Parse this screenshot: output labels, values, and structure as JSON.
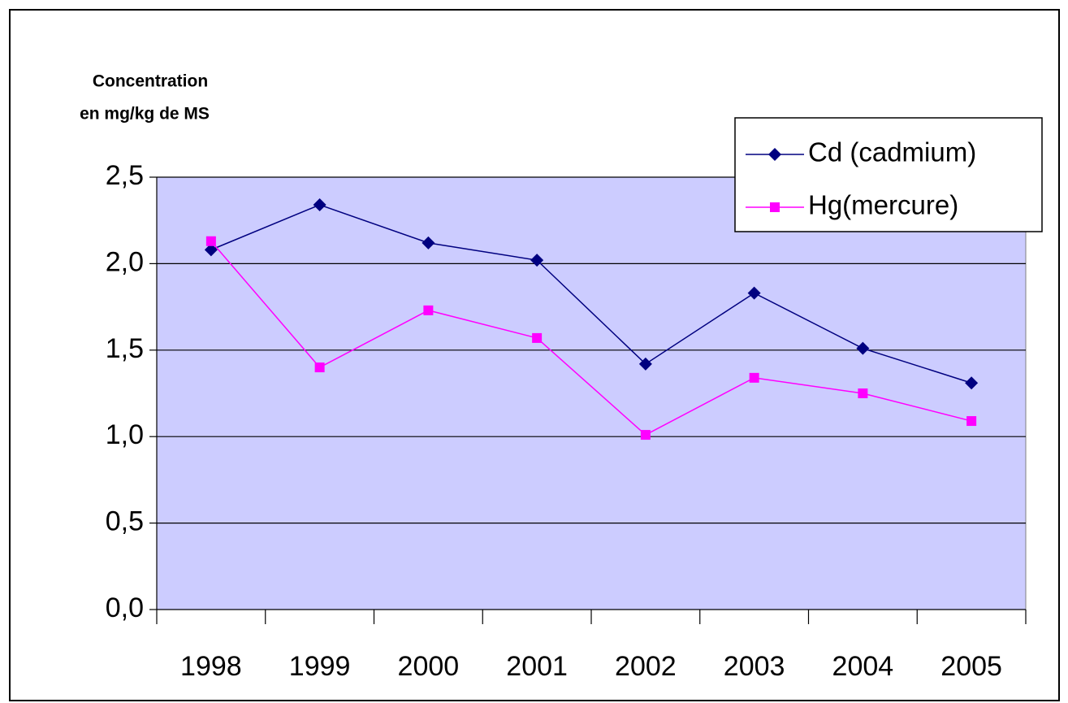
{
  "chart_data": {
    "type": "line",
    "y_label": [
      "Concentration",
      "en mg/kg de MS"
    ],
    "categories": [
      "1998",
      "1999",
      "2000",
      "2001",
      "2002",
      "2003",
      "2004",
      "2005"
    ],
    "series": [
      {
        "name": "Cd (cadmium)",
        "color": "#000080",
        "marker": "diamond",
        "values": [
          2.08,
          2.34,
          2.12,
          2.02,
          1.42,
          1.83,
          1.51,
          1.31
        ]
      },
      {
        "name": "Hg(mercure)",
        "color": "#ff00ff",
        "marker": "square",
        "values": [
          2.13,
          1.4,
          1.73,
          1.57,
          1.01,
          1.34,
          1.25,
          1.09
        ]
      }
    ],
    "ylim": [
      0,
      2.5
    ],
    "yticks": [
      {
        "value": 0,
        "label": "0,0"
      },
      {
        "value": 0.5,
        "label": "0,5"
      },
      {
        "value": 1,
        "label": "1,0"
      },
      {
        "value": 1.5,
        "label": "1,5"
      },
      {
        "value": 2,
        "label": "2,0"
      },
      {
        "value": 2.5,
        "label": "2,5"
      }
    ],
    "grid": true,
    "plot_background": "#ccccff",
    "legend": "top-right"
  }
}
